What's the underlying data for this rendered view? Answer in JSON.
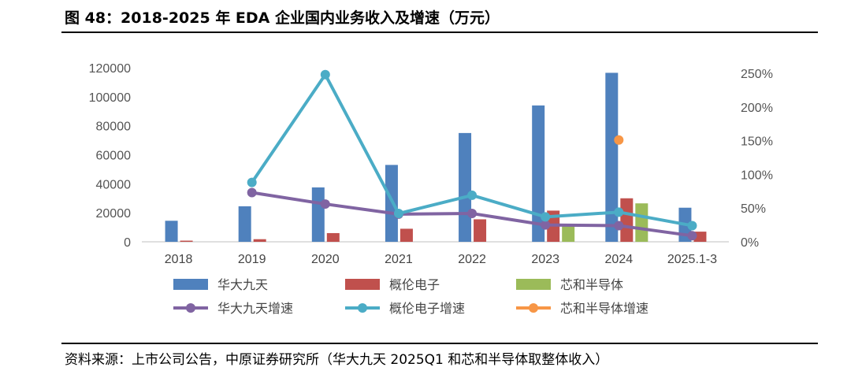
{
  "header": {
    "title": "图 48：2018-2025 年 EDA 企业国内业务收入及增速（万元）"
  },
  "footer": {
    "source": "资料来源：上市公司公告，中原证券研究所（华大九天 2025Q1 和芯和半导体取整体收入）"
  },
  "colors": {
    "huada_bar": "#4F81BD",
    "gailun_bar": "#C0504D",
    "xinhe_bar": "#9BBB59",
    "huada_line": "#8064A2",
    "gailun_line": "#4BACC6",
    "xinhe_line": "#F79646"
  },
  "chart_data": {
    "type": "bar+line",
    "title": "2018-2025 年 EDA 企业国内业务收入及增速（万元）",
    "categories": [
      "2018",
      "2019",
      "2020",
      "2021",
      "2022",
      "2023",
      "2024",
      "2025.1-3"
    ],
    "left_axis": {
      "min": 0,
      "max": 120000,
      "ticks": [
        "0",
        "20000",
        "40000",
        "60000",
        "80000",
        "100000",
        "120000"
      ]
    },
    "right_axis": {
      "min": 0,
      "max": 2.5,
      "ticks": [
        "0%",
        "50%",
        "100%",
        "150%",
        "200%",
        "250%"
      ]
    },
    "bar_series": [
      {
        "name": "华大九天",
        "values": [
          14500,
          24500,
          37500,
          53000,
          75000,
          94000,
          116500,
          23500
        ]
      },
      {
        "name": "概伦电子",
        "values": [
          800,
          1800,
          6000,
          9000,
          15500,
          21500,
          30000,
          7000
        ]
      },
      {
        "name": "芯和半导体",
        "values": [
          null,
          null,
          null,
          null,
          null,
          11000,
          26500,
          null
        ]
      }
    ],
    "line_series": [
      {
        "name": "华大九天增速",
        "values": [
          null,
          0.73,
          0.56,
          0.41,
          0.42,
          0.25,
          0.24,
          0.09
        ]
      },
      {
        "name": "概伦电子增速",
        "values": [
          null,
          0.88,
          2.48,
          0.42,
          0.69,
          0.37,
          0.44,
          0.24
        ]
      },
      {
        "name": "芯和半导体增速",
        "values": [
          null,
          null,
          null,
          null,
          null,
          null,
          1.51,
          null
        ]
      }
    ],
    "legend": [
      "华大九天",
      "概伦电子",
      "芯和半导体",
      "华大九天增速",
      "概伦电子增速",
      "芯和半导体增速"
    ],
    "grid": false,
    "legend_position": "bottom"
  }
}
